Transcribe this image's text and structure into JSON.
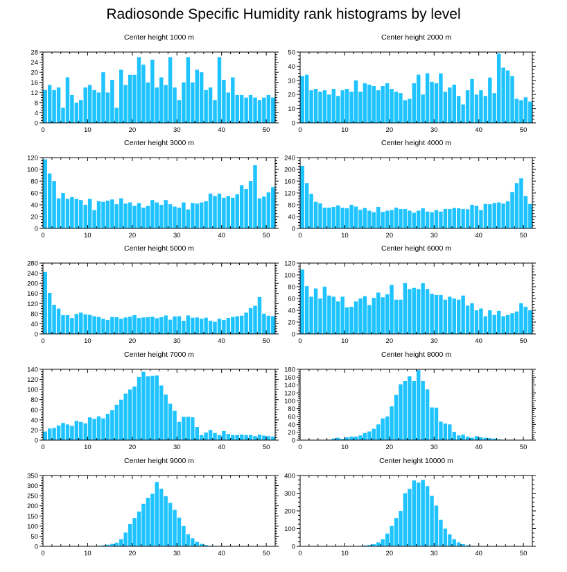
{
  "title": "Radiosonde Specific Humidity rank histograms by level",
  "bar_color": "#1ec3ff",
  "chart_data": [
    {
      "type": "bar",
      "title": "Center height 1000 m",
      "x_start": 0,
      "xlim": [
        0,
        52
      ],
      "xticks": [
        0,
        10,
        20,
        30,
        40,
        50
      ],
      "ylim": [
        0,
        28
      ],
      "yticks": [
        0,
        4,
        8,
        12,
        16,
        20,
        24,
        28
      ],
      "values": [
        13,
        15,
        13,
        14,
        6,
        18,
        11,
        8,
        9,
        14,
        15,
        13,
        12,
        20,
        12,
        17,
        6,
        21,
        15,
        19,
        19,
        26,
        23,
        16,
        25,
        14,
        18,
        15,
        26,
        14,
        9,
        16,
        26,
        16,
        21,
        20,
        13,
        14,
        9,
        26,
        17,
        12,
        18,
        11,
        11,
        10,
        11,
        10,
        9,
        10,
        11,
        10
      ]
    },
    {
      "type": "bar",
      "title": "Center height 2000 m",
      "x_start": 0,
      "xlim": [
        0,
        52
      ],
      "xticks": [
        0,
        10,
        20,
        30,
        40,
        50
      ],
      "ylim": [
        0,
        50
      ],
      "yticks": [
        0,
        10,
        20,
        30,
        40,
        50
      ],
      "values": [
        33,
        34,
        23,
        24,
        22,
        23,
        20,
        24,
        19,
        23,
        24,
        22,
        30,
        22,
        28,
        27,
        26,
        23,
        26,
        28,
        24,
        22,
        21,
        16,
        17,
        28,
        34,
        20,
        35,
        29,
        28,
        35,
        22,
        25,
        27,
        19,
        13,
        23,
        31,
        20,
        23,
        19,
        32,
        21,
        49,
        39,
        37,
        33,
        17,
        16,
        18,
        15
      ]
    },
    {
      "type": "bar",
      "title": "Center height 3000 m",
      "x_start": 0,
      "xlim": [
        0,
        52
      ],
      "xticks": [
        0,
        10,
        20,
        30,
        40,
        50
      ],
      "ylim": [
        0,
        120
      ],
      "yticks": [
        0,
        20,
        40,
        60,
        80,
        100,
        120
      ],
      "values": [
        117,
        93,
        80,
        51,
        60,
        50,
        53,
        50,
        48,
        40,
        50,
        31,
        46,
        45,
        47,
        49,
        41,
        51,
        42,
        44,
        38,
        43,
        35,
        38,
        48,
        44,
        40,
        48,
        41,
        37,
        35,
        44,
        32,
        43,
        42,
        44,
        46,
        59,
        55,
        59,
        52,
        55,
        52,
        58,
        73,
        67,
        80,
        107,
        51,
        54,
        61,
        70
      ]
    },
    {
      "type": "bar",
      "title": "Center height 4000 m",
      "x_start": 0,
      "xlim": [
        0,
        52
      ],
      "xticks": [
        0,
        10,
        20,
        30,
        40,
        50
      ],
      "ylim": [
        0,
        240
      ],
      "yticks": [
        0,
        40,
        80,
        120,
        160,
        200,
        240
      ],
      "values": [
        212,
        153,
        117,
        90,
        85,
        70,
        70,
        73,
        78,
        70,
        68,
        80,
        74,
        63,
        69,
        60,
        55,
        73,
        56,
        60,
        62,
        70,
        66,
        66,
        60,
        53,
        60,
        68,
        57,
        55,
        62,
        57,
        66,
        66,
        69,
        68,
        66,
        65,
        80,
        76,
        62,
        83,
        82,
        86,
        88,
        84,
        92,
        123,
        153,
        170,
        110,
        83
      ]
    },
    {
      "type": "bar",
      "title": "Center height 5000 m",
      "x_start": 0,
      "xlim": [
        0,
        52
      ],
      "xticks": [
        0,
        10,
        20,
        30,
        40,
        50
      ],
      "ylim": [
        0,
        280
      ],
      "yticks": [
        0,
        40,
        80,
        120,
        160,
        200,
        240,
        280
      ],
      "values": [
        245,
        162,
        115,
        100,
        74,
        74,
        63,
        79,
        84,
        77,
        75,
        70,
        67,
        60,
        55,
        67,
        66,
        60,
        65,
        68,
        74,
        63,
        65,
        66,
        68,
        62,
        66,
        73,
        56,
        69,
        70,
        52,
        73,
        64,
        65,
        60,
        64,
        52,
        48,
        60,
        55,
        63,
        67,
        70,
        72,
        84,
        102,
        111,
        146,
        80,
        72,
        70
      ]
    },
    {
      "type": "bar",
      "title": "Center height 6000 m",
      "x_start": 0,
      "xlim": [
        0,
        52
      ],
      "xticks": [
        0,
        10,
        20,
        30,
        40,
        50
      ],
      "ylim": [
        0,
        120
      ],
      "yticks": [
        0,
        20,
        40,
        60,
        80,
        100,
        120
      ],
      "values": [
        109,
        81,
        63,
        77,
        60,
        80,
        65,
        63,
        55,
        63,
        45,
        46,
        55,
        60,
        64,
        49,
        61,
        70,
        62,
        67,
        83,
        58,
        58,
        86,
        76,
        78,
        76,
        86,
        76,
        68,
        66,
        66,
        58,
        63,
        60,
        58,
        65,
        48,
        52,
        40,
        43,
        30,
        40,
        32,
        39,
        30,
        32,
        35,
        38,
        52,
        46,
        40
      ]
    },
    {
      "type": "bar",
      "title": "Center height 7000 m",
      "x_start": 0,
      "xlim": [
        0,
        52
      ],
      "xticks": [
        0,
        10,
        20,
        30,
        40,
        50
      ],
      "ylim": [
        0,
        140
      ],
      "yticks": [
        0,
        20,
        40,
        60,
        80,
        100,
        120,
        140
      ],
      "values": [
        17,
        23,
        24,
        29,
        34,
        31,
        28,
        38,
        36,
        33,
        45,
        42,
        47,
        43,
        52,
        59,
        70,
        80,
        92,
        100,
        106,
        125,
        135,
        126,
        127,
        128,
        108,
        90,
        72,
        58,
        36,
        46,
        46,
        45,
        26,
        10,
        15,
        20,
        14,
        10,
        18,
        12,
        10,
        10,
        11,
        10,
        10,
        8,
        11,
        9,
        8,
        7
      ]
    },
    {
      "type": "bar",
      "title": "Center height 8000 m",
      "x_start": 0,
      "xlim": [
        0,
        52
      ],
      "xticks": [
        0,
        10,
        20,
        30,
        40,
        50
      ],
      "ylim": [
        0,
        180
      ],
      "yticks": [
        0,
        20,
        40,
        60,
        80,
        100,
        120,
        140,
        160,
        180
      ],
      "values": [
        0,
        0,
        0,
        0,
        0,
        0,
        1,
        4,
        6,
        3,
        7,
        9,
        9,
        12,
        18,
        22,
        29,
        40,
        55,
        60,
        86,
        115,
        142,
        150,
        162,
        150,
        178,
        150,
        129,
        83,
        82,
        47,
        42,
        40,
        21,
        12,
        14,
        9,
        6,
        10,
        7,
        6,
        5,
        4,
        2,
        1,
        1,
        1,
        0,
        0,
        0,
        0
      ]
    },
    {
      "type": "bar",
      "title": "Center height 9000 m",
      "x_start": 0,
      "xlim": [
        0,
        52
      ],
      "xticks": [
        0,
        10,
        20,
        30,
        40,
        50
      ],
      "ylim": [
        0,
        350
      ],
      "yticks": [
        0,
        50,
        100,
        150,
        200,
        250,
        300,
        350
      ],
      "values": [
        0,
        0,
        0,
        0,
        0,
        0,
        1,
        1,
        1,
        1,
        2,
        2,
        3,
        5,
        8,
        12,
        18,
        35,
        68,
        110,
        140,
        172,
        210,
        240,
        260,
        318,
        285,
        248,
        215,
        180,
        142,
        100,
        60,
        40,
        22,
        12,
        6,
        3,
        2,
        1,
        1,
        0,
        0,
        0,
        0,
        0,
        0,
        0,
        0,
        0,
        0,
        0
      ]
    },
    {
      "type": "bar",
      "title": "Center height 10000 m",
      "x_start": 0,
      "xlim": [
        0,
        52
      ],
      "xticks": [
        0,
        10,
        20,
        30,
        40,
        50
      ],
      "ylim": [
        0,
        400
      ],
      "yticks": [
        0,
        100,
        200,
        300,
        400
      ],
      "values": [
        0,
        0,
        0,
        0,
        0,
        0,
        0,
        0,
        1,
        1,
        1,
        2,
        2,
        3,
        5,
        8,
        12,
        22,
        40,
        72,
        115,
        160,
        200,
        300,
        325,
        372,
        360,
        375,
        340,
        285,
        230,
        150,
        100,
        68,
        40,
        22,
        12,
        6,
        3,
        1,
        1,
        0,
        0,
        0,
        0,
        0,
        0,
        0,
        0,
        0,
        0,
        0
      ]
    }
  ]
}
